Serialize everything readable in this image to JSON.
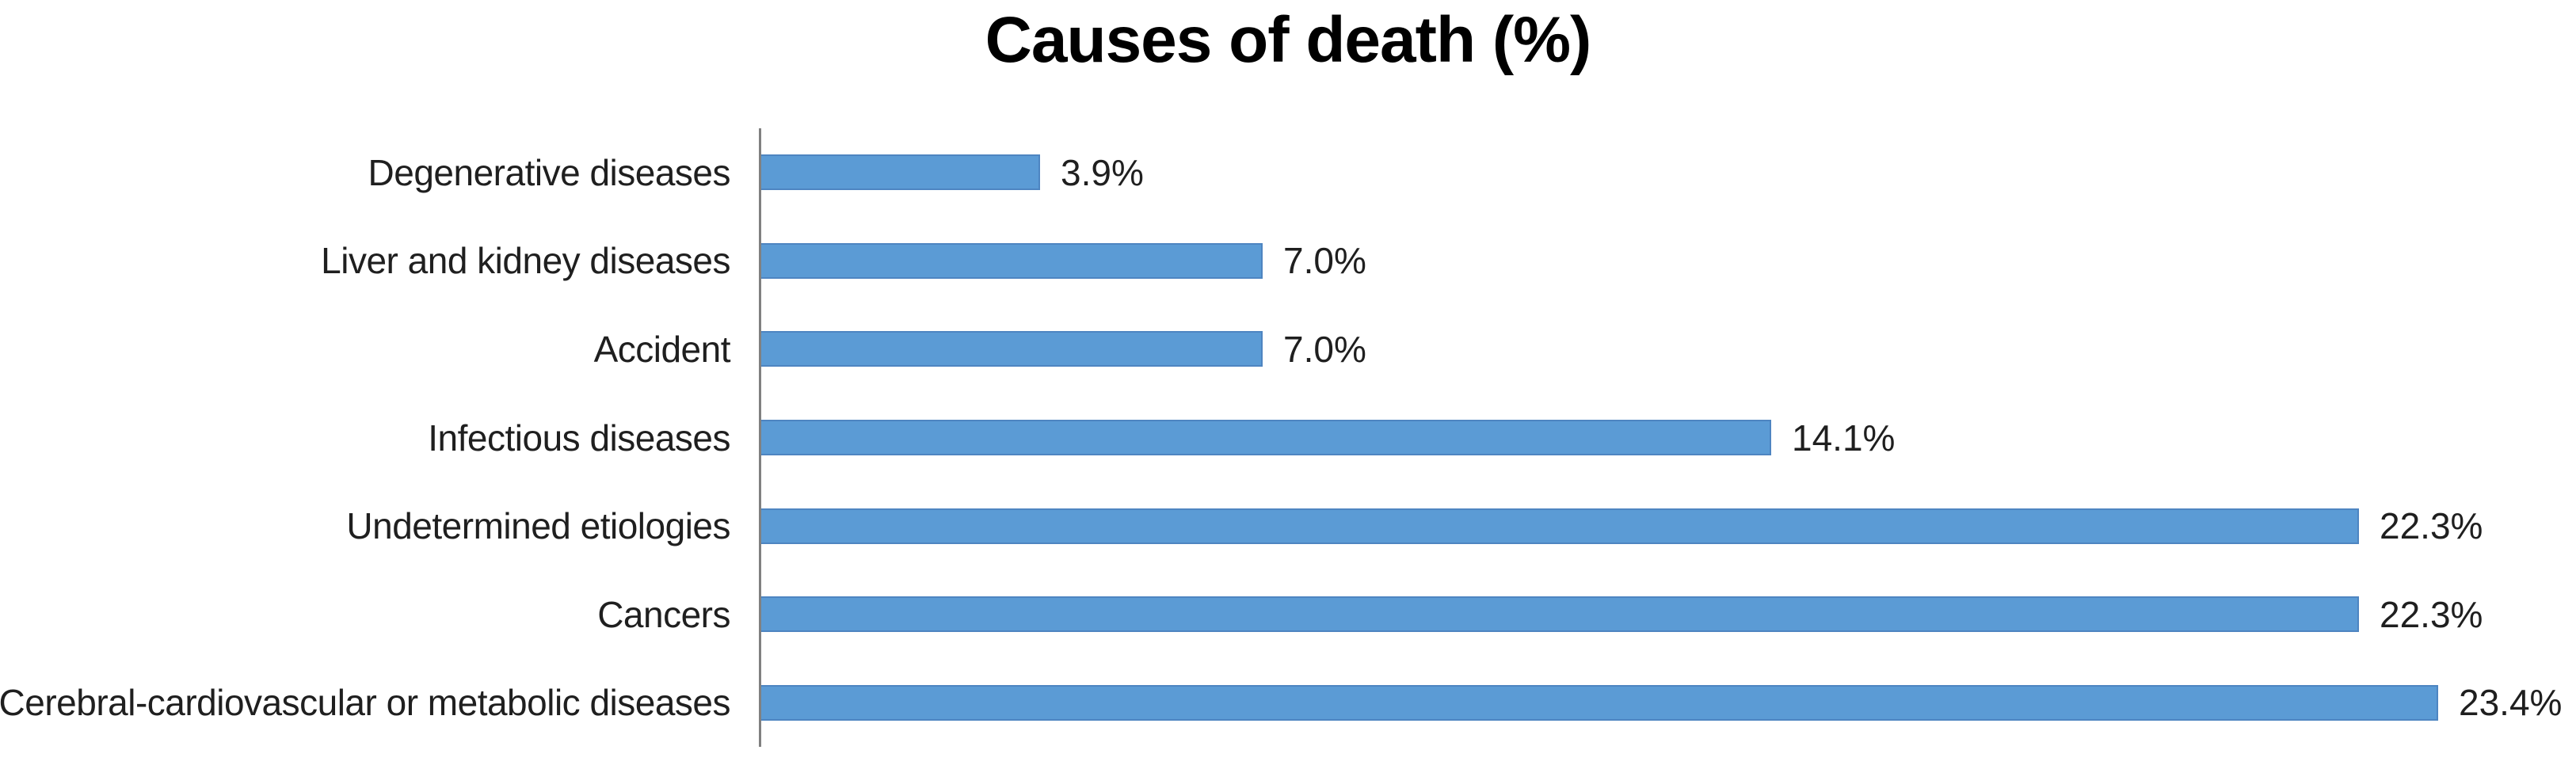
{
  "chart_data": {
    "type": "bar",
    "orientation": "horizontal",
    "title": "Causes of death (%)",
    "xlabel": "",
    "ylabel": "",
    "categories": [
      "Degenerative diseases",
      "Liver and kidney diseases",
      "Accident",
      "Infectious diseases",
      "Undetermined etiologies",
      "Cancers",
      "Cerebral-cardiovascular or metabolic diseases"
    ],
    "values": [
      3.9,
      7.0,
      7.0,
      14.1,
      22.3,
      22.3,
      23.4
    ],
    "value_labels": [
      "3.9%",
      "7.0%",
      "7.0%",
      "14.1%",
      "22.3%",
      "22.3%",
      "23.4%"
    ],
    "xlim": [
      0,
      25
    ],
    "grid": false,
    "legend": false,
    "bar_color": "#5B9BD5",
    "bar_border_color": "#4E85C1",
    "axis_line_color": "#808080",
    "label_color": "#1F1F1F",
    "title_color": "#000000",
    "background_color": "#FFFFFF"
  }
}
